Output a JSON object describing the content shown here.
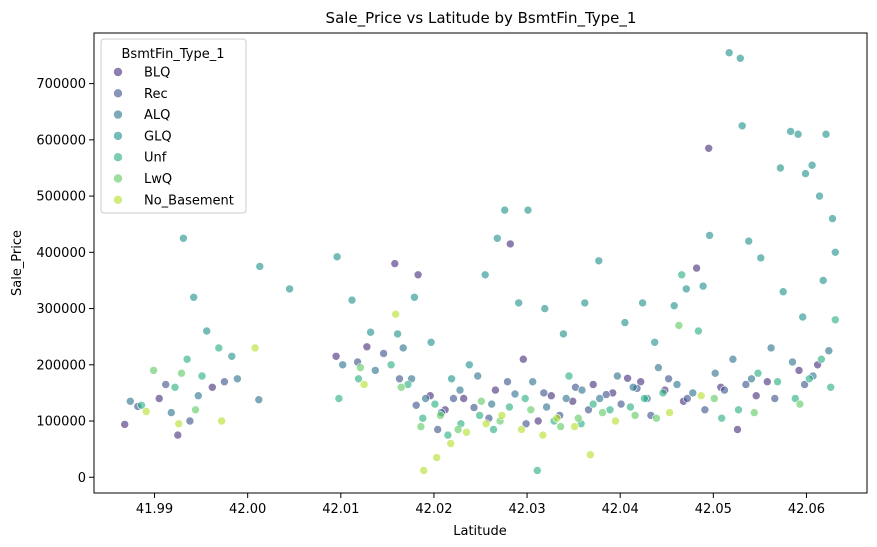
{
  "chart_data": {
    "type": "scatter",
    "title": "Sale_Price vs Latitude by BsmtFin_Type_1",
    "xlabel": "Latitude",
    "ylabel": "Sale_Price",
    "xlim": [
      41.9835,
      42.0665
    ],
    "ylim": [
      -28000,
      790000
    ],
    "xticks": [
      41.99,
      42.0,
      42.01,
      42.02,
      42.03,
      42.04,
      42.05,
      42.06
    ],
    "xtick_labels": [
      "41.99",
      "42.00",
      "42.01",
      "42.02",
      "42.03",
      "42.04",
      "42.05",
      "42.06"
    ],
    "yticks": [
      0,
      100000,
      200000,
      300000,
      400000,
      500000,
      600000,
      700000
    ],
    "ytick_labels": [
      "0",
      "100000",
      "200000",
      "300000",
      "400000",
      "500000",
      "600000",
      "700000"
    ],
    "grid": false,
    "legend": {
      "title": "BsmtFin_Type_1",
      "placement": "top-left"
    },
    "series": [
      {
        "name": "BLQ",
        "color": "#472f7d",
        "points": [
          [
            41.9868,
            94000
          ],
          [
            41.9905,
            140000
          ],
          [
            41.9925,
            75000
          ],
          [
            41.9962,
            160000
          ],
          [
            42.0095,
            215000
          ],
          [
            42.0128,
            232000
          ],
          [
            42.0158,
            380000
          ],
          [
            42.0183,
            360000
          ],
          [
            42.0196,
            145000
          ],
          [
            42.0212,
            120000
          ],
          [
            42.0232,
            140000
          ],
          [
            42.0266,
            155000
          ],
          [
            42.0282,
            415000
          ],
          [
            42.0296,
            210000
          ],
          [
            42.0312,
            100000
          ],
          [
            42.0326,
            145000
          ],
          [
            42.0349,
            135000
          ],
          [
            42.0371,
            165000
          ],
          [
            42.0392,
            150000
          ],
          [
            42.0408,
            176000
          ],
          [
            42.0422,
            170000
          ],
          [
            42.0448,
            155000
          ],
          [
            42.0468,
            135000
          ],
          [
            42.0482,
            372000
          ],
          [
            42.0495,
            585000
          ],
          [
            42.0508,
            160000
          ],
          [
            42.0526,
            85000
          ],
          [
            42.0546,
            145000
          ],
          [
            42.0558,
            170000
          ],
          [
            42.0592,
            190000
          ],
          [
            42.0612,
            200000
          ]
        ]
      },
      {
        "name": "Rec",
        "color": "#3b528b",
        "points": [
          [
            41.9882,
            126000
          ],
          [
            41.9912,
            165000
          ],
          [
            41.9938,
            100000
          ],
          [
            41.9975,
            170000
          ],
          [
            42.0118,
            205000
          ],
          [
            42.0146,
            220000
          ],
          [
            42.0163,
            175000
          ],
          [
            42.0181,
            128000
          ],
          [
            42.0204,
            85000
          ],
          [
            42.0221,
            140000
          ],
          [
            42.0243,
            124000
          ],
          [
            42.0259,
            105000
          ],
          [
            42.0279,
            170000
          ],
          [
            42.0299,
            95000
          ],
          [
            42.0318,
            150000
          ],
          [
            42.0335,
            110000
          ],
          [
            42.0352,
            160000
          ],
          [
            42.0366,
            120000
          ],
          [
            42.0385,
            147000
          ],
          [
            42.0401,
            130000
          ],
          [
            42.0418,
            158000
          ],
          [
            42.0433,
            110000
          ],
          [
            42.0452,
            175000
          ],
          [
            42.0472,
            140000
          ],
          [
            42.0491,
            120000
          ],
          [
            42.0512,
            155000
          ],
          [
            42.0535,
            165000
          ],
          [
            42.0566,
            140000
          ],
          [
            42.0598,
            165000
          ]
        ]
      },
      {
        "name": "ALQ",
        "color": "#2c728e",
        "points": [
          [
            41.9874,
            135000
          ],
          [
            41.9918,
            115000
          ],
          [
            41.9947,
            145000
          ],
          [
            41.9989,
            175000
          ],
          [
            42.0012,
            138000
          ],
          [
            42.0102,
            200000
          ],
          [
            42.0137,
            190000
          ],
          [
            42.0167,
            230000
          ],
          [
            42.0176,
            175000
          ],
          [
            42.0191,
            140000
          ],
          [
            42.0208,
            115000
          ],
          [
            42.0228,
            155000
          ],
          [
            42.0247,
            180000
          ],
          [
            42.0262,
            130000
          ],
          [
            42.0287,
            148000
          ],
          [
            42.0306,
            170000
          ],
          [
            42.0321,
            125000
          ],
          [
            42.0342,
            140000
          ],
          [
            42.0359,
            155000
          ],
          [
            42.0378,
            140000
          ],
          [
            42.0397,
            180000
          ],
          [
            42.0414,
            160000
          ],
          [
            42.0429,
            140000
          ],
          [
            42.0441,
            195000
          ],
          [
            42.0461,
            165000
          ],
          [
            42.0478,
            150000
          ],
          [
            42.0502,
            185000
          ],
          [
            42.0521,
            210000
          ],
          [
            42.0541,
            175000
          ],
          [
            42.0562,
            230000
          ],
          [
            42.0585,
            205000
          ],
          [
            42.0607,
            180000
          ],
          [
            42.0624,
            225000
          ]
        ]
      },
      {
        "name": "GLQ",
        "color": "#21918c",
        "points": [
          [
            41.9931,
            425000
          ],
          [
            41.9942,
            320000
          ],
          [
            41.9956,
            260000
          ],
          [
            41.9983,
            215000
          ],
          [
            42.0013,
            375000
          ],
          [
            42.0045,
            335000
          ],
          [
            42.0096,
            392000
          ],
          [
            42.0112,
            315000
          ],
          [
            42.0132,
            258000
          ],
          [
            42.0161,
            255000
          ],
          [
            42.0179,
            320000
          ],
          [
            42.0197,
            240000
          ],
          [
            42.0219,
            175000
          ],
          [
            42.0238,
            200000
          ],
          [
            42.0255,
            360000
          ],
          [
            42.0268,
            425000
          ],
          [
            42.0276,
            475000
          ],
          [
            42.0291,
            310000
          ],
          [
            42.0301,
            475000
          ],
          [
            42.0319,
            300000
          ],
          [
            42.0339,
            255000
          ],
          [
            42.0362,
            310000
          ],
          [
            42.0377,
            385000
          ],
          [
            42.0405,
            275000
          ],
          [
            42.0424,
            310000
          ],
          [
            42.0437,
            240000
          ],
          [
            42.0458,
            305000
          ],
          [
            42.0471,
            335000
          ],
          [
            42.0489,
            340000
          ],
          [
            42.0496,
            430000
          ],
          [
            42.0517,
            755000
          ],
          [
            42.0529,
            745000
          ],
          [
            42.0531,
            625000
          ],
          [
            42.0538,
            420000
          ],
          [
            42.0551,
            390000
          ],
          [
            42.0572,
            550000
          ],
          [
            42.0583,
            615000
          ],
          [
            42.0591,
            610000
          ],
          [
            42.0599,
            540000
          ],
          [
            42.0606,
            555000
          ],
          [
            42.0614,
            500000
          ],
          [
            42.0621,
            610000
          ],
          [
            42.0628,
            460000
          ],
          [
            42.0631,
            400000
          ],
          [
            42.0575,
            330000
          ],
          [
            42.0596,
            285000
          ],
          [
            42.0618,
            350000
          ]
        ]
      },
      {
        "name": "Unf",
        "color": "#28ae80",
        "points": [
          [
            41.9886,
            128000
          ],
          [
            41.9922,
            160000
          ],
          [
            41.9935,
            210000
          ],
          [
            41.9951,
            180000
          ],
          [
            41.9969,
            230000
          ],
          [
            42.0098,
            140000
          ],
          [
            42.0119,
            175000
          ],
          [
            42.0154,
            200000
          ],
          [
            42.0172,
            165000
          ],
          [
            42.0188,
            105000
          ],
          [
            42.0201,
            130000
          ],
          [
            42.0215,
            75000
          ],
          [
            42.0229,
            95000
          ],
          [
            42.0249,
            110000
          ],
          [
            42.0264,
            85000
          ],
          [
            42.0281,
            125000
          ],
          [
            42.0298,
            140000
          ],
          [
            42.0311,
            12000
          ],
          [
            42.0329,
            100000
          ],
          [
            42.0345,
            180000
          ],
          [
            42.0358,
            95000
          ],
          [
            42.0371,
            130000
          ],
          [
            42.0389,
            120000
          ],
          [
            42.0411,
            125000
          ],
          [
            42.0426,
            140000
          ],
          [
            42.0446,
            150000
          ],
          [
            42.0466,
            360000
          ],
          [
            42.0484,
            260000
          ],
          [
            42.0509,
            105000
          ],
          [
            42.0527,
            120000
          ],
          [
            42.0548,
            185000
          ],
          [
            42.0569,
            170000
          ],
          [
            42.0588,
            140000
          ],
          [
            42.0603,
            175000
          ],
          [
            42.0616,
            210000
          ],
          [
            42.0626,
            160000
          ],
          [
            42.0631,
            280000
          ]
        ]
      },
      {
        "name": "LwQ",
        "color": "#5ec962",
        "points": [
          [
            41.9899,
            190000
          ],
          [
            41.9929,
            185000
          ],
          [
            41.9944,
            120000
          ],
          [
            42.0121,
            195000
          ],
          [
            42.0165,
            160000
          ],
          [
            42.0186,
            90000
          ],
          [
            42.0207,
            110000
          ],
          [
            42.0226,
            85000
          ],
          [
            42.0251,
            135000
          ],
          [
            42.0271,
            100000
          ],
          [
            42.0304,
            120000
          ],
          [
            42.0336,
            90000
          ],
          [
            42.0355,
            105000
          ],
          [
            42.0381,
            115000
          ],
          [
            42.0416,
            110000
          ],
          [
            42.0439,
            105000
          ],
          [
            42.0463,
            270000
          ],
          [
            42.0501,
            140000
          ],
          [
            42.0544,
            115000
          ],
          [
            42.0593,
            130000
          ]
        ]
      },
      {
        "name": "No_Basement",
        "color": "#b5de2b",
        "points": [
          [
            41.9891,
            117000
          ],
          [
            41.9926,
            95000
          ],
          [
            41.9972,
            100000
          ],
          [
            42.0008,
            230000
          ],
          [
            42.0125,
            165000
          ],
          [
            42.0159,
            290000
          ],
          [
            42.0189,
            12000
          ],
          [
            42.0203,
            35000
          ],
          [
            42.0218,
            60000
          ],
          [
            42.0235,
            80000
          ],
          [
            42.0256,
            95000
          ],
          [
            42.0273,
            110000
          ],
          [
            42.0294,
            85000
          ],
          [
            42.0317,
            75000
          ],
          [
            42.0332,
            105000
          ],
          [
            42.0351,
            90000
          ],
          [
            42.0368,
            40000
          ],
          [
            42.0395,
            100000
          ],
          [
            42.0453,
            115000
          ],
          [
            42.0487,
            145000
          ]
        ]
      }
    ]
  }
}
